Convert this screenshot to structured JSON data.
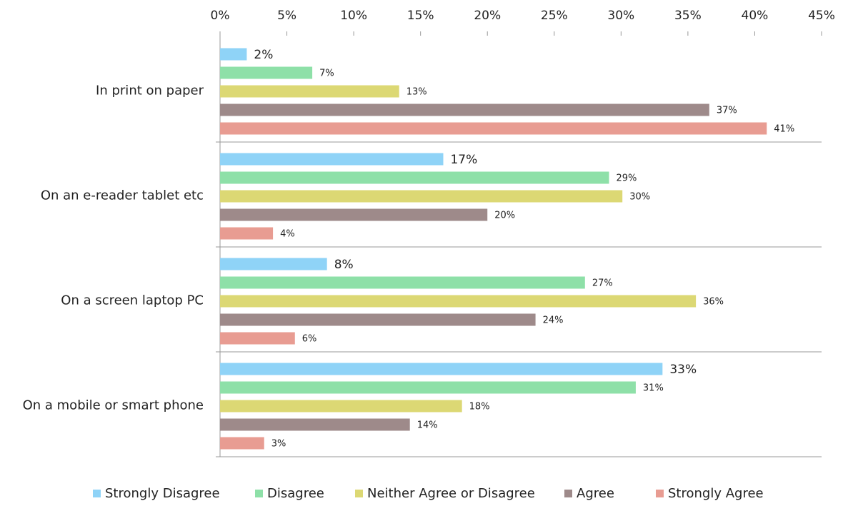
{
  "chart_data": {
    "type": "bar",
    "orientation": "horizontal",
    "categories": [
      "In print  on paper",
      "On an e-reader  tablet etc",
      "On a screen  laptop  PC",
      "On a mobile or smart phone"
    ],
    "series": [
      {
        "name": "Strongly Disagree",
        "color": "#8fd3f7",
        "values": [
          2.0,
          16.7,
          8.0,
          33.1
        ],
        "value_labels": [
          "2%",
          "17%",
          "8%",
          "33%"
        ]
      },
      {
        "name": "Disagree",
        "color": "#8ee0a8",
        "values": [
          6.9,
          29.1,
          27.3,
          31.1
        ],
        "value_labels": [
          "7%",
          "29%",
          "27%",
          "31%"
        ]
      },
      {
        "name": "Neither Agree or Disagree",
        "color": "#dcd874",
        "values": [
          13.4,
          30.1,
          35.6,
          18.1
        ],
        "value_labels": [
          "13%",
          "30%",
          "36%",
          "18%"
        ]
      },
      {
        "name": "Agree",
        "color": "#9e8a8a",
        "values": [
          36.6,
          20.0,
          23.6,
          14.2
        ],
        "value_labels": [
          "37%",
          "20%",
          "24%",
          "14%"
        ]
      },
      {
        "name": "Strongly Agree",
        "color": "#e89c92",
        "values": [
          40.9,
          3.96,
          5.6,
          3.3
        ],
        "value_labels": [
          "41%",
          "4%",
          "6%",
          "3%"
        ]
      }
    ],
    "xlim": [
      0,
      45
    ],
    "xticks": [
      {
        "value": 0,
        "label": "0%"
      },
      {
        "value": 5,
        "label": "5%"
      },
      {
        "value": 10,
        "label": "10%"
      },
      {
        "value": 15,
        "label": "15%"
      },
      {
        "value": 20,
        "label": "20%"
      },
      {
        "value": 25,
        "label": "25%"
      },
      {
        "value": 30,
        "label": "30%"
      },
      {
        "value": 35,
        "label": "35%"
      },
      {
        "value": 40,
        "label": "40%"
      },
      {
        "value": 45,
        "label": "45%"
      }
    ],
    "legend": "bottom"
  }
}
